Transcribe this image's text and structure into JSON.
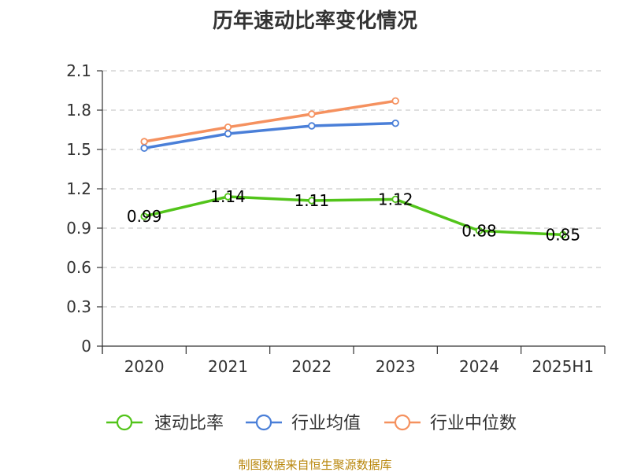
{
  "chart_data": {
    "type": "line",
    "title": "历年速动比率变化情况",
    "categories": [
      "2020",
      "2021",
      "2022",
      "2023",
      "2024",
      "2025H1"
    ],
    "ylim": [
      0,
      2.1
    ],
    "yticks": [
      "0",
      "0.3",
      "0.6",
      "0.9",
      "1.2",
      "1.5",
      "1.8",
      "2.1"
    ],
    "grid": "horizontal dashed",
    "legend_position": "bottom",
    "series": [
      {
        "name": "速动比率",
        "color": "#52c41a",
        "values": [
          0.99,
          1.14,
          1.11,
          1.12,
          0.88,
          0.85
        ],
        "labels": [
          "0.99",
          "1.14",
          "1.11",
          "1.12",
          "0.88",
          "0.85"
        ]
      },
      {
        "name": "行业均值",
        "color": "#4a7fd8",
        "values": [
          1.51,
          1.62,
          1.68,
          1.7,
          null,
          null
        ]
      },
      {
        "name": "行业中位数",
        "color": "#f5915f",
        "values": [
          1.56,
          1.67,
          1.77,
          1.87,
          null,
          null
        ]
      }
    ],
    "source": "制图数据来自恒生聚源数据库"
  }
}
